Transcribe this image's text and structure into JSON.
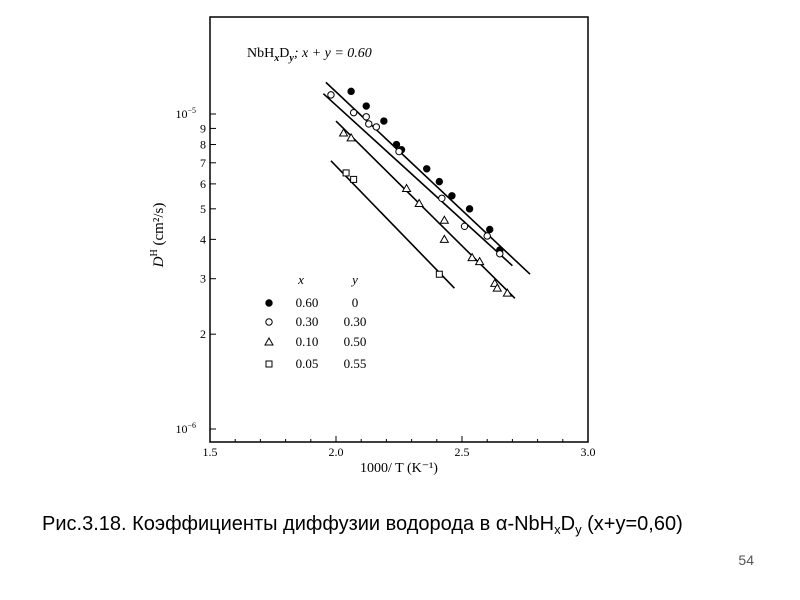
{
  "chart_data": {
    "type": "scatter",
    "title_parts": {
      "base": "NbH",
      "sub1": "x",
      "mid": "D",
      "sub2": "y",
      "condition": "; x + y = 0.60"
    },
    "xlabel": "1000/ T  (K⁻¹)",
    "ylabel": "D",
    "ylabel_sup": "H",
    "ylabel_unit": " (cm²/s)",
    "xlim": [
      1.5,
      3.0
    ],
    "ylim": [
      1e-06,
      2e-05
    ],
    "yscale": "log",
    "grid": false,
    "x_ticks": [
      {
        "value": 1.5,
        "label": "1.5"
      },
      {
        "value": 2.0,
        "label": "2.0"
      },
      {
        "value": 2.5,
        "label": "2.5"
      },
      {
        "value": 3.0,
        "label": "3.0"
      }
    ],
    "y_ticks": [
      {
        "value": 1e-06,
        "label": "10",
        "sup": "−6"
      },
      {
        "value": 2e-06,
        "label": "2"
      },
      {
        "value": 3e-06,
        "label": "3"
      },
      {
        "value": 4e-06,
        "label": "4"
      },
      {
        "value": 5e-06,
        "label": "5"
      },
      {
        "value": 6e-06,
        "label": "6"
      },
      {
        "value": 7e-06,
        "label": "7"
      },
      {
        "value": 8e-06,
        "label": "8"
      },
      {
        "value": 9e-06,
        "label": "9"
      },
      {
        "value": 1e-05,
        "label": "10",
        "sup": "−5"
      }
    ],
    "legend": {
      "position": "lower-left",
      "header_x": "x",
      "header_y": "y",
      "entries": [
        {
          "marker": "filled-circle",
          "x": "0.60",
          "y": "0"
        },
        {
          "marker": "open-circle",
          "x": "0.30",
          "y": "0.30"
        },
        {
          "marker": "open-triangle",
          "x": "0.10",
          "y": "0.50"
        },
        {
          "marker": "open-square",
          "x": "0.05",
          "y": "0.55"
        }
      ]
    },
    "series": [
      {
        "marker": "filled-circle",
        "points": [
          [
            2.06,
            1.18e-05
          ],
          [
            2.12,
            1.06e-05
          ],
          [
            2.19,
            9.5e-06
          ],
          [
            2.24,
            8e-06
          ],
          [
            2.26,
            7.7e-06
          ],
          [
            2.36,
            6.7e-06
          ],
          [
            2.41,
            6.1e-06
          ],
          [
            2.46,
            5.5e-06
          ],
          [
            2.53,
            5e-06
          ],
          [
            2.61,
            4.3e-06
          ],
          [
            2.65,
            3.7e-06
          ]
        ],
        "fit": [
          [
            1.96,
            1.26e-05
          ],
          [
            2.77,
            3.1e-06
          ]
        ]
      },
      {
        "marker": "open-circle",
        "points": [
          [
            1.98,
            1.15e-05
          ],
          [
            2.07,
            1.01e-05
          ],
          [
            2.12,
            9.8e-06
          ],
          [
            2.13,
            9.3e-06
          ],
          [
            2.16,
            9.1e-06
          ],
          [
            2.25,
            7.6e-06
          ],
          [
            2.42,
            5.4e-06
          ],
          [
            2.51,
            4.4e-06
          ],
          [
            2.6,
            4.1e-06
          ],
          [
            2.65,
            3.6e-06
          ]
        ],
        "fit": [
          [
            1.95,
            1.16e-05
          ],
          [
            2.7,
            3.3e-06
          ]
        ]
      },
      {
        "marker": "open-triangle",
        "points": [
          [
            2.03,
            8.7e-06
          ],
          [
            2.06,
            8.4e-06
          ],
          [
            2.28,
            5.8e-06
          ],
          [
            2.33,
            5.2e-06
          ],
          [
            2.43,
            4.6e-06
          ],
          [
            2.43,
            4e-06
          ],
          [
            2.54,
            3.5e-06
          ],
          [
            2.57,
            3.4e-06
          ],
          [
            2.63,
            2.9e-06
          ],
          [
            2.64,
            2.8e-06
          ],
          [
            2.68,
            2.7e-06
          ]
        ],
        "fit": [
          [
            2.0,
            9.5e-06
          ],
          [
            2.71,
            2.6e-06
          ]
        ]
      },
      {
        "marker": "open-square",
        "points": [
          [
            2.04,
            6.5e-06
          ],
          [
            2.07,
            6.2e-06
          ],
          [
            2.41,
            3.1e-06
          ]
        ],
        "fit": [
          [
            1.98,
            7.1e-06
          ],
          [
            2.47,
            2.8e-06
          ]
        ]
      }
    ]
  },
  "caption": {
    "prefix": "Рис.3.18. Коэффициенты диффузии водорода в ",
    "alpha": "α",
    "formula_a": "-NbH",
    "sub_x": "x",
    "formula_b": "D",
    "sub_y": "y",
    "suffix": " (x+y=0,60)"
  },
  "page_number": "54"
}
